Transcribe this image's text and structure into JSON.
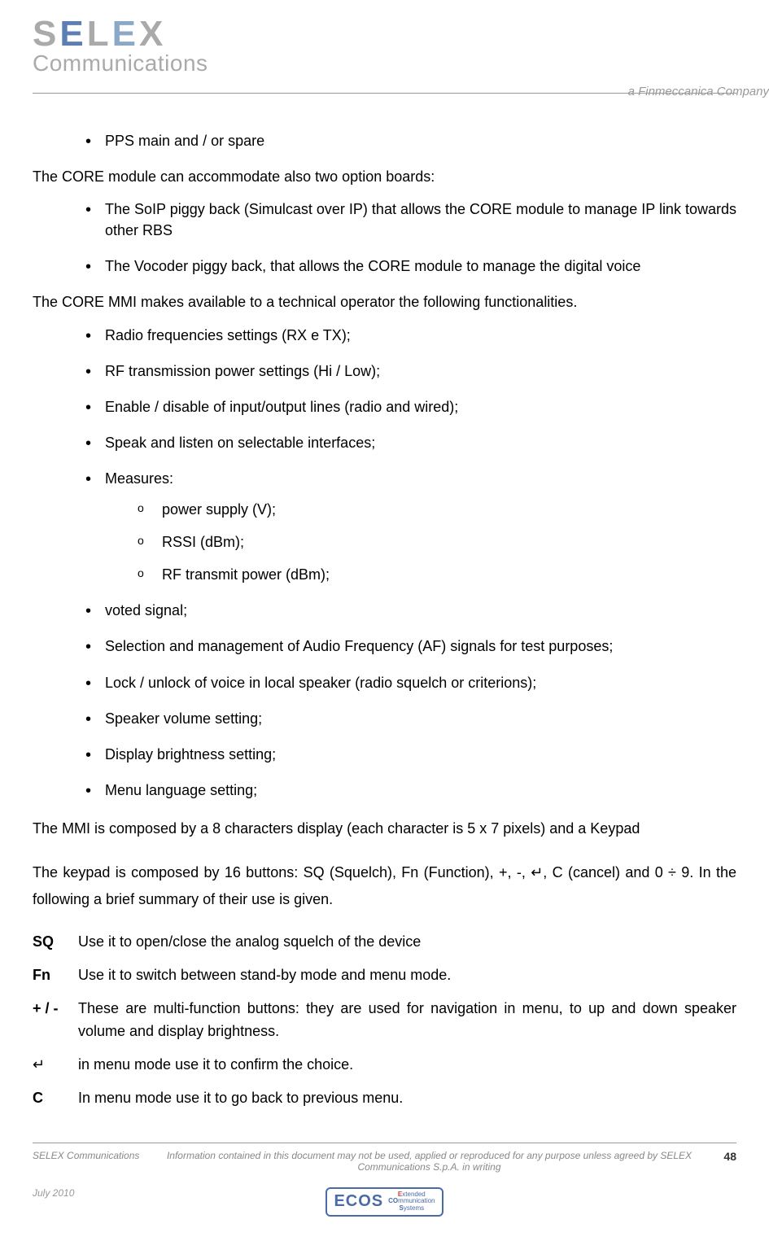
{
  "header": {
    "logo_letters": "SELEX",
    "logo_sub": "Communications",
    "tagline": "a Finmeccanica Company"
  },
  "bullets1": {
    "i0": "PPS main and / or spare"
  },
  "p1": "The CORE module can accommodate also two option boards:",
  "bullets2": {
    "i0": "The SoIP piggy back (Simulcast over IP) that allows the CORE module to manage IP link towards other RBS",
    "i1": "The Vocoder piggy back, that allows the CORE module to manage the digital voice"
  },
  "p2": "The CORE MMI makes available to a technical operator the following functionalities.",
  "bullets3": {
    "i0": "Radio frequencies settings (RX e TX);",
    "i1": "RF transmission power settings (Hi / Low);",
    "i2": "Enable / disable of input/output lines (radio and wired);",
    "i3": "Speak and listen on selectable interfaces;",
    "i4": "Measures:",
    "sub": {
      "s0": " power  supply (V);",
      "s1": "RSSI (dBm);",
      "s2": " RF transmit power (dBm);"
    },
    "i5": "voted signal;",
    "i6": "Selection and management of Audio Frequency (AF) signals for test purposes;",
    "i7": "Lock / unlock of voice in local speaker (radio squelch or criterions);",
    "i8": "Speaker volume setting;",
    "i9": "Display brightness setting;",
    "i10": "Menu language setting;"
  },
  "p3": "The MMI is composed by a 8 characters display (each character is 5 x 7 pixels) and a Keypad",
  "p4": "The keypad is composed by 16 buttons: SQ (Squelch), Fn (Function), +, -, ↵, C (cancel) and 0 ÷ 9. In the following a brief summary of their use is given.",
  "defs": {
    "k0": "SQ",
    "v0": "Use it to open/close the analog squelch of the device",
    "k1": "Fn",
    "v1": "Use it to switch between stand-by mode and menu mode.",
    "k2": "+ / -",
    "v2": "These are multi-function buttons: they are used for navigation in menu, to up and down speaker volume and display brightness.",
    "k3": "↵",
    "v3": "in menu mode use it to confirm the choice.",
    "k4": "C",
    "v4": "In menu mode use it to go back to previous menu."
  },
  "footer": {
    "company": "SELEX Communications",
    "notice": "Information contained in this document may not be used, applied or reproduced for any purpose unless agreed by SELEX Communications S.p.A. in writing",
    "page": "48",
    "date": "July 2010",
    "ecos": "ECOS",
    "ecos_l1": "Extended",
    "ecos_l2": "COmmunication",
    "ecos_l3": "Systems"
  }
}
